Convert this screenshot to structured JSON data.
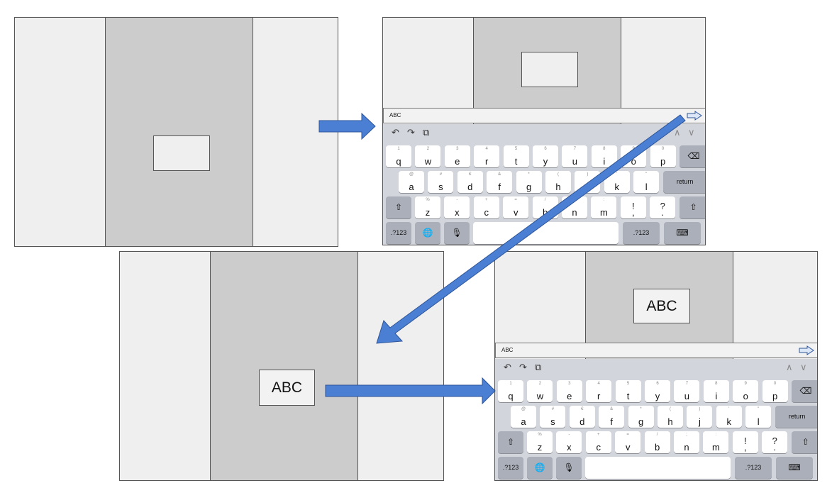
{
  "panels": {
    "p3": {
      "label": "ABC"
    },
    "p4": {
      "label": "ABC"
    }
  },
  "input": {
    "text": "ABC"
  },
  "keyboard": {
    "row1": [
      {
        "k": "q",
        "h": "1"
      },
      {
        "k": "w",
        "h": "2"
      },
      {
        "k": "e",
        "h": "3"
      },
      {
        "k": "r",
        "h": "4"
      },
      {
        "k": "t",
        "h": "5"
      },
      {
        "k": "y",
        "h": "6"
      },
      {
        "k": "u",
        "h": "7"
      },
      {
        "k": "i",
        "h": "8"
      },
      {
        "k": "o",
        "h": "9"
      },
      {
        "k": "p",
        "h": "0"
      }
    ],
    "row2": [
      {
        "k": "a",
        "h": "@"
      },
      {
        "k": "s",
        "h": "#"
      },
      {
        "k": "d",
        "h": "€"
      },
      {
        "k": "f",
        "h": "&"
      },
      {
        "k": "g",
        "h": "*"
      },
      {
        "k": "h",
        "h": "("
      },
      {
        "k": "j",
        "h": ")"
      },
      {
        "k": "k",
        "h": "'"
      },
      {
        "k": "l",
        "h": "\""
      }
    ],
    "row3": [
      {
        "k": "z",
        "h": "%"
      },
      {
        "k": "x",
        "h": "-"
      },
      {
        "k": "c",
        "h": "+"
      },
      {
        "k": "v",
        "h": "="
      },
      {
        "k": "b",
        "h": "/"
      },
      {
        "k": "n",
        "h": ";"
      },
      {
        "k": "m",
        "h": ":"
      },
      {
        "k": "!\n,",
        "h": ""
      },
      {
        "k": "?\n.",
        "h": ""
      }
    ],
    "return_label": "return",
    "num_label": ".?123"
  },
  "colors": {
    "arrow_fill": "#4a7fd4",
    "arrow_stroke": "#2f5597",
    "mid_column": "#cccccc",
    "side_column": "#efefef"
  }
}
